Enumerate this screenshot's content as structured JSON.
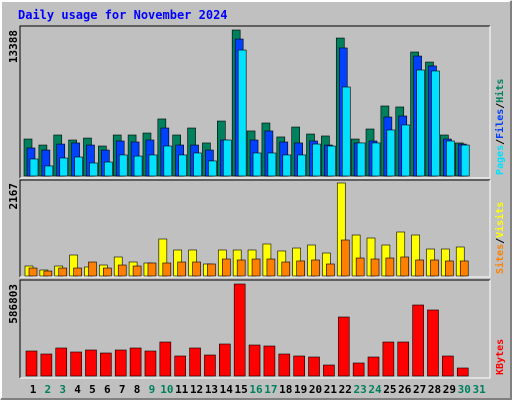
{
  "title": "Daily usage for November 2024",
  "legend_separator": "/",
  "categories": [
    "1",
    "2",
    "3",
    "4",
    "5",
    "6",
    "7",
    "8",
    "9",
    "10",
    "11",
    "12",
    "13",
    "14",
    "15",
    "16",
    "17",
    "18",
    "19",
    "20",
    "21",
    "22",
    "23",
    "24",
    "25",
    "26",
    "27",
    "28",
    "29",
    "30",
    "31"
  ],
  "category_colors": [
    "#000000",
    "#00805c",
    "#00805c",
    "#000000",
    "#000000",
    "#000000",
    "#000000",
    "#000000",
    "#00805c",
    "#00805c",
    "#000000",
    "#000000",
    "#000000",
    "#000000",
    "#000000",
    "#00805c",
    "#00805c",
    "#000000",
    "#000000",
    "#000000",
    "#000000",
    "#000000",
    "#00805c",
    "#00805c",
    "#000000",
    "#000000",
    "#000000",
    "#000000",
    "#000000",
    "#00805c",
    "#00805c"
  ],
  "chart_data": [
    {
      "type": "bar",
      "ylim": [
        0,
        13388
      ],
      "yticks": [
        13388
      ],
      "series": [
        {
          "name": "Hits",
          "color": "#00805c",
          "values": [
            3390,
            2840,
            3760,
            3300,
            3480,
            2750,
            3760,
            3760,
            3940,
            5230,
            3760,
            4400,
            3030,
            5040,
            13388,
            4130,
            4860,
            3580,
            4490,
            3850,
            3670,
            12650,
            3390,
            4310,
            6420,
            6330,
            11370,
            10450,
            3760,
            3030,
            null
          ]
        },
        {
          "name": "Files",
          "color": "#0040ff",
          "values": [
            2570,
            2380,
            2930,
            3030,
            2840,
            2380,
            3210,
            3120,
            3300,
            4400,
            2840,
            2840,
            2380,
            3300,
            12560,
            3300,
            4130,
            3120,
            3030,
            3210,
            2840,
            11740,
            3030,
            3210,
            5410,
            5500,
            11000,
            10090,
            3390,
            2930,
            null
          ]
        },
        {
          "name": "Pages",
          "color": "#00e0ff",
          "values": [
            1560,
            920,
            1650,
            1740,
            1190,
            1280,
            1930,
            1830,
            1930,
            2750,
            1930,
            2110,
            1380,
            3300,
            11550,
            2110,
            2110,
            1930,
            1930,
            2930,
            2750,
            8160,
            3030,
            3030,
            4220,
            4680,
            9720,
            9630,
            3210,
            2840,
            null
          ]
        }
      ]
    },
    {
      "type": "bar",
      "ylim": [
        0,
        2167
      ],
      "yticks": [
        2167
      ],
      "series": [
        {
          "name": "Visits",
          "color": "#ffff00",
          "values": [
            233,
            140,
            233,
            489,
            210,
            256,
            443,
            326,
            303,
            862,
            606,
            606,
            280,
            606,
            606,
            606,
            746,
            583,
            652,
            722,
            536,
            2167,
            955,
            885,
            722,
            1025,
            955,
            629,
            629,
            676,
            null
          ]
        },
        {
          "name": "Sites",
          "color": "#ff8000",
          "values": [
            186,
            116,
            186,
            186,
            326,
            186,
            256,
            233,
            303,
            303,
            326,
            326,
            280,
            396,
            373,
            396,
            396,
            326,
            350,
            373,
            280,
            839,
            419,
            396,
            419,
            443,
            373,
            373,
            350,
            350,
            null
          ]
        }
      ]
    },
    {
      "type": "bar",
      "ylim": [
        0,
        586803
      ],
      "yticks": [
        586803
      ],
      "series": [
        {
          "name": "KBytes",
          "color": "#ff0000",
          "values": [
            159450,
            140320,
            178580,
            153070,
            165830,
            146690,
            165830,
            178580,
            159450,
            216850,
            127560,
            178580,
            133940,
            204100,
            586803,
            197720,
            191340,
            140320,
            127560,
            121180,
            70160,
            376300,
            82910,
            121180,
            216850,
            216850,
            452840,
            420950,
            127560,
            51020,
            null
          ]
        }
      ]
    }
  ]
}
